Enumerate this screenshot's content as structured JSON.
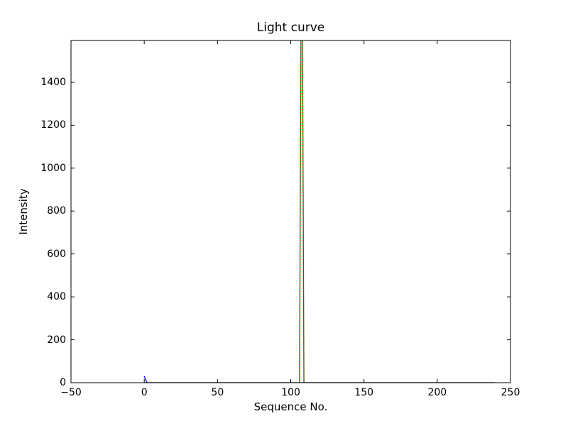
{
  "chart_data": {
    "type": "line",
    "title": "Light curve",
    "xlabel": "Sequence No.",
    "ylabel": "Intensity",
    "xlim": [
      -50,
      250
    ],
    "ylim": [
      0,
      1595
    ],
    "xticks": [
      -50,
      0,
      50,
      100,
      150,
      200,
      250
    ],
    "xtick_labels": [
      "−50",
      "0",
      "50",
      "100",
      "150",
      "200",
      "250"
    ],
    "yticks": [
      0,
      200,
      400,
      600,
      800,
      1000,
      1200,
      1400
    ],
    "ytick_labels": [
      "0",
      "200",
      "400",
      "600",
      "800",
      "1000",
      "1200",
      "1400"
    ],
    "grid": false,
    "legend": null,
    "frame_color": "#000000",
    "background_color": "#ffffff",
    "tick_direction": "in",
    "series": [
      {
        "name": "blue-series",
        "color": "#0000ff",
        "style": "solid",
        "points": [
          [
            0,
            30
          ],
          [
            1,
            12
          ],
          [
            2,
            0
          ],
          [
            239,
            0
          ]
        ]
      },
      {
        "name": "green-series",
        "color": "#008000",
        "style": "solid",
        "points": [
          [
            0,
            0
          ],
          [
            106,
            0
          ],
          [
            107,
            1650
          ],
          [
            108,
            1650
          ],
          [
            109,
            0
          ],
          [
            239,
            0
          ]
        ],
        "peak_clipped_above_ylim": true,
        "spike_x": 107
      },
      {
        "name": "red-series",
        "color": "#ff0000",
        "style": "dotted",
        "points": [
          [
            0,
            0
          ],
          [
            106,
            0
          ],
          [
            107,
            1650
          ],
          [
            108,
            1650
          ],
          [
            109,
            0
          ],
          [
            239,
            0
          ]
        ],
        "peak_clipped_above_ylim": true,
        "spike_x": 107
      }
    ]
  }
}
